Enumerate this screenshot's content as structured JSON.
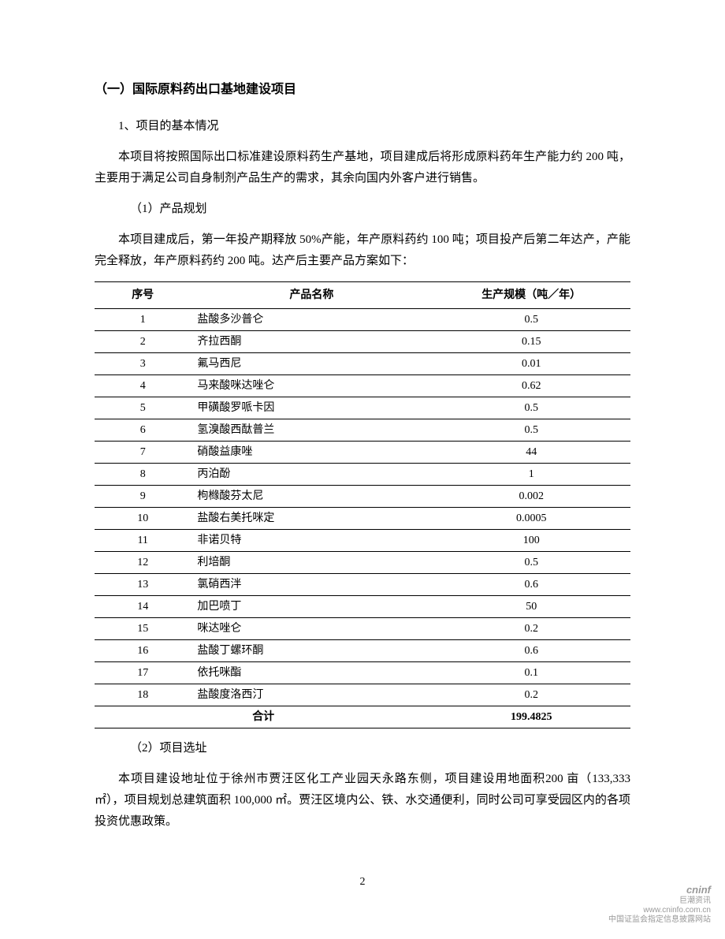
{
  "heading_main": "（一）国际原料药出口基地建设项目",
  "section1_title": "1、项目的基本情况",
  "section1_para": "本项目将按照国际出口标准建设原料药生产基地，项目建成后将形成原料药年生产能力约 200 吨，主要用于满足公司自身制剂产品生产的需求，其余向国内外客户进行销售。",
  "sub1_title": "（1）产品规划",
  "sub1_para": "本项目建成后，第一年投产期释放 50%产能，年产原料药约 100 吨；项目投产后第二年达产，产能完全释放，年产原料药约 200 吨。达产后主要产品方案如下：",
  "table": {
    "headers": {
      "seq": "序号",
      "name": "产品名称",
      "scale": "生产规模（吨／年）"
    },
    "rows": [
      {
        "seq": "1",
        "name": "盐酸多沙普仑",
        "scale": "0.5"
      },
      {
        "seq": "2",
        "name": "齐拉西酮",
        "scale": "0.15"
      },
      {
        "seq": "3",
        "name": "氟马西尼",
        "scale": "0.01"
      },
      {
        "seq": "4",
        "name": "马来酸咪达唑仑",
        "scale": "0.62"
      },
      {
        "seq": "5",
        "name": "甲磺酸罗哌卡因",
        "scale": "0.5"
      },
      {
        "seq": "6",
        "name": "氢溴酸西酞普兰",
        "scale": "0.5"
      },
      {
        "seq": "7",
        "name": "硝酸益康唑",
        "scale": "44"
      },
      {
        "seq": "8",
        "name": "丙泊酚",
        "scale": "1"
      },
      {
        "seq": "9",
        "name": "枸橼酸芬太尼",
        "scale": "0.002"
      },
      {
        "seq": "10",
        "name": "盐酸右美托咪定",
        "scale": "0.0005"
      },
      {
        "seq": "11",
        "name": "非诺贝特",
        "scale": "100"
      },
      {
        "seq": "12",
        "name": "利培酮",
        "scale": "0.5"
      },
      {
        "seq": "13",
        "name": "氯硝西泮",
        "scale": "0.6"
      },
      {
        "seq": "14",
        "name": "加巴喷丁",
        "scale": "50"
      },
      {
        "seq": "15",
        "name": "咪达唑仑",
        "scale": "0.2"
      },
      {
        "seq": "16",
        "name": "盐酸丁螺环酮",
        "scale": "0.6"
      },
      {
        "seq": "17",
        "name": "依托咪酯",
        "scale": "0.1"
      },
      {
        "seq": "18",
        "name": "盐酸度洛西汀",
        "scale": "0.2"
      }
    ],
    "total_label": "合计",
    "total_value": "199.4825"
  },
  "sub2_title": "（2）项目选址",
  "sub2_para": "本项目建设地址位于徐州市贾汪区化工产业园天永路东侧，项目建设用地面积200 亩（133,333 ㎡），项目规划总建筑面积 100,000 ㎡。贾汪区境内公、铁、水交通便利，同时公司可享受园区内的各项投资优惠政策。",
  "page_number": "2",
  "watermark": {
    "logo": "cninf",
    "sub": "巨潮资讯",
    "domain": "www.cninfo.com.cn",
    "tagline": "中国证监会指定信息披露网站"
  },
  "colors": {
    "text": "#000000",
    "border": "#000000",
    "background": "#ffffff",
    "watermark": "#999999"
  }
}
